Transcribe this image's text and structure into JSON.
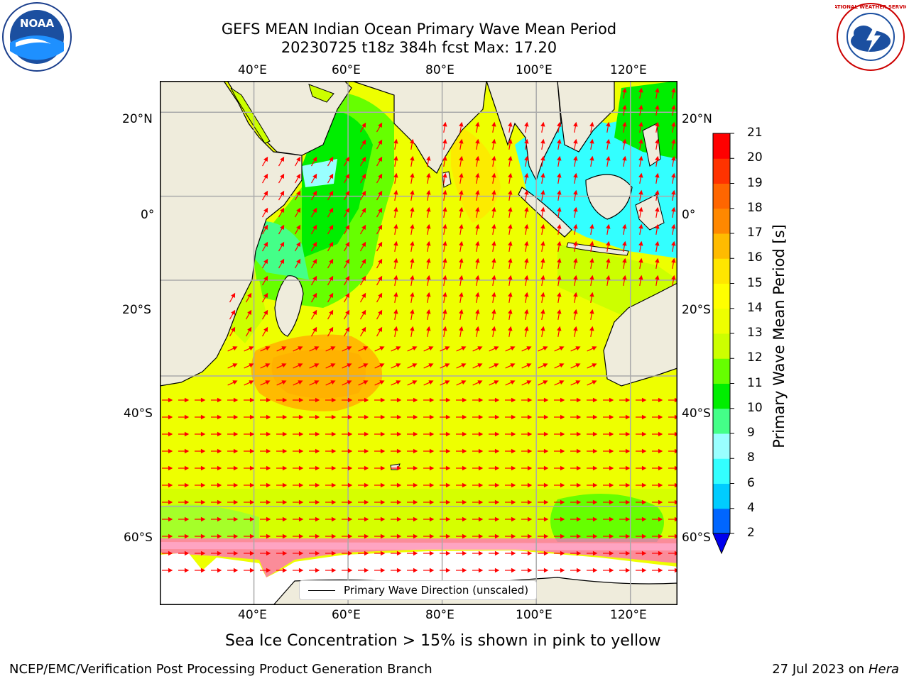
{
  "header": {
    "title_line1": "GEFS MEAN Indian Ocean Primary Wave Mean Period",
    "title_line2": "20230725 t18z 384h fcst   Max: 17.20"
  },
  "logos": {
    "left": "NOAA",
    "right": "NATIONAL WEATHER SERVICE"
  },
  "map": {
    "lon_ticks": [
      "40°E",
      "60°E",
      "80°E",
      "100°E",
      "120°E"
    ],
    "lat_ticks_left": [
      "20°N",
      "0°",
      "20°S",
      "40°S",
      "60°S"
    ],
    "lat_ticks_right": [
      "20°N",
      "0°",
      "20°S",
      "40°S",
      "60°S"
    ],
    "lon_range": [
      20,
      130
    ],
    "lat_range": [
      -70,
      27
    ],
    "gridlines": true,
    "arrow_color": "#ff0000",
    "land_color": "#efecdc"
  },
  "legend": {
    "label": "Primary Wave Direction (unscaled)"
  },
  "colorbar": {
    "label": "Primary Wave Mean Period [s]",
    "ticks": [
      "2",
      "4",
      "6",
      "8",
      "9",
      "10",
      "11",
      "12",
      "13",
      "14",
      "15",
      "16",
      "17",
      "18",
      "19",
      "20",
      "21"
    ],
    "colors": [
      "#0066ff",
      "#00ccff",
      "#33ffff",
      "#99ffff",
      "#44ff88",
      "#00ee00",
      "#66ff00",
      "#ccff00",
      "#eeff00",
      "#ffff00",
      "#ffe600",
      "#ffbb00",
      "#ff8800",
      "#ff6600",
      "#ff3300",
      "#ff0000"
    ],
    "extend_color": "#0000ee"
  },
  "notes": {
    "sea_ice": "Sea Ice Concentration > 15% is shown in pink to yellow"
  },
  "footer": {
    "left": "NCEP/EMC/Verification Post Processing Product Generation Branch",
    "right_date": "27 Jul 2023 on ",
    "right_machine": "Hera"
  }
}
